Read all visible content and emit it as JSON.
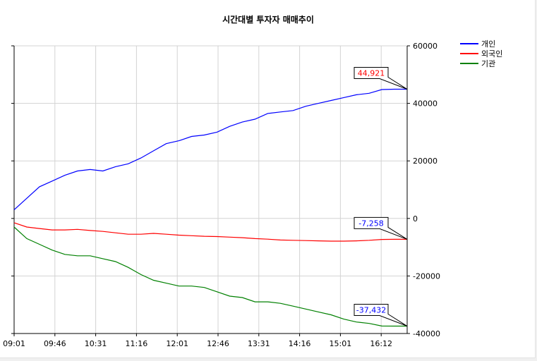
{
  "chart_data": {
    "type": "line",
    "title": "시간대별 투자자 매매추이",
    "xlabel": "",
    "ylabel": "",
    "x_tick_labels": [
      "09:01",
      "09:46",
      "10:31",
      "11:16",
      "12:01",
      "12:46",
      "13:31",
      "14:16",
      "15:01",
      "16:12"
    ],
    "y_ticks": [
      60000,
      40000,
      20000,
      0,
      -20000,
      -40000
    ],
    "y_tick_labels": [
      "60000",
      "40000",
      "20000",
      "0",
      "-20000",
      "-40000"
    ],
    "ylim": [
      -40000,
      60000
    ],
    "grid": true,
    "legend_position": "top-right",
    "series": [
      {
        "name": "개인",
        "color": "#0000ff",
        "values": [
          3000,
          7000,
          11000,
          13000,
          15000,
          16500,
          17000,
          16500,
          18000,
          19000,
          21000,
          23500,
          26000,
          27000,
          28500,
          29000,
          30000,
          32000,
          33500,
          34500,
          36500,
          37000,
          37500,
          39000,
          40000,
          41000,
          42000,
          43000,
          43500,
          44800,
          44921,
          44921
        ],
        "end_label": "44,921",
        "end_label_color": "#ff0000"
      },
      {
        "name": "외국인",
        "color": "#ff0000",
        "values": [
          -1500,
          -3000,
          -3500,
          -4000,
          -4000,
          -3800,
          -4200,
          -4500,
          -5000,
          -5500,
          -5500,
          -5200,
          -5500,
          -5800,
          -6000,
          -6200,
          -6300,
          -6500,
          -6700,
          -7000,
          -7200,
          -7500,
          -7600,
          -7700,
          -7800,
          -7900,
          -7900,
          -7800,
          -7600,
          -7300,
          -7258,
          -7258
        ],
        "end_label": "-7,258",
        "end_label_color": "#0000ff"
      },
      {
        "name": "기관",
        "color": "#008000",
        "values": [
          -3000,
          -7000,
          -9000,
          -11000,
          -12500,
          -13000,
          -13000,
          -14000,
          -15000,
          -17000,
          -19500,
          -21500,
          -22500,
          -23500,
          -23500,
          -24000,
          -25500,
          -27000,
          -27500,
          -29000,
          -29000,
          -29500,
          -30500,
          -31500,
          -32500,
          -33500,
          -35000,
          -36000,
          -36500,
          -37400,
          -37432,
          -37432
        ],
        "end_label": "-37,432",
        "end_label_color": "#0000ff"
      }
    ]
  }
}
